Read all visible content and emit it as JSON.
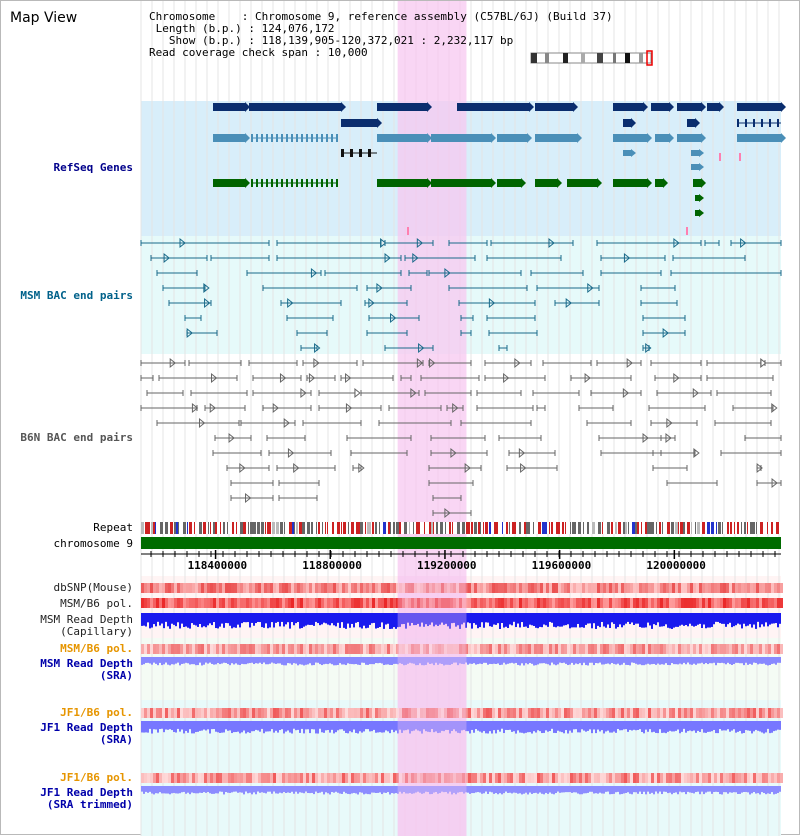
{
  "title": "Map View",
  "info": {
    "chromosome_key": "Chromosome",
    "chromosome_value": "Chromosome 9, reference assembly (C57BL/6J) (Build 37)",
    "length_key": "Length (b.p.)",
    "length_value": "124,076,172",
    "show_key": "Show (b.p.)",
    "show_value": "118,139,905-120,372,021 : 2,232,117 bp",
    "coverage_key": "Read coverage check span",
    "coverage_value": "10,000"
  },
  "tracks": {
    "refseq": "RefSeq Genes",
    "msm_bac": "MSM BAC end pairs",
    "b6n_bac": "B6N BAC end pairs",
    "repeat": "Repeat",
    "chromosome": "chromosome 9",
    "dbsnp": "dbSNP(Mouse)",
    "msm_b6_pol_1": "MSM/B6 pol.",
    "msm_depth_cap": "MSM Read Depth\n(Capillary)",
    "msm_b6_pol_2": "MSM/B6 pol.",
    "msm_depth_sra": "MSM Read Depth\n(SRA)",
    "jf1_b6_pol_1": "JF1/B6 pol.",
    "jf1_depth_sra": "JF1 Read Depth\n(SRA)",
    "jf1_b6_pol_2": "JF1/B6 pol.",
    "jf1_depth_trim": "JF1 Read Depth\n(SRA trimmed)"
  },
  "axis": {
    "ticks": [
      "118400000",
      "118800000",
      "119200000",
      "119600000",
      "120000000"
    ],
    "tick_values": [
      118400000,
      118800000,
      119200000,
      119600000,
      120000000
    ],
    "range": [
      118139905,
      120372021
    ]
  },
  "highlight_range": [
    119035000,
    119275000
  ],
  "colors": {
    "navy_gene": "#0a2d6e",
    "light_gene": "#4a8fb8",
    "green_gene": "#006400",
    "msm_bac": "#1a6a8a",
    "b6n_bac": "#666666",
    "highlight": "#f7c8f0",
    "refseq_bg": "#d8eefa",
    "msm_bg": "#e6fafa",
    "b6n_bg": "#ffffff"
  }
}
